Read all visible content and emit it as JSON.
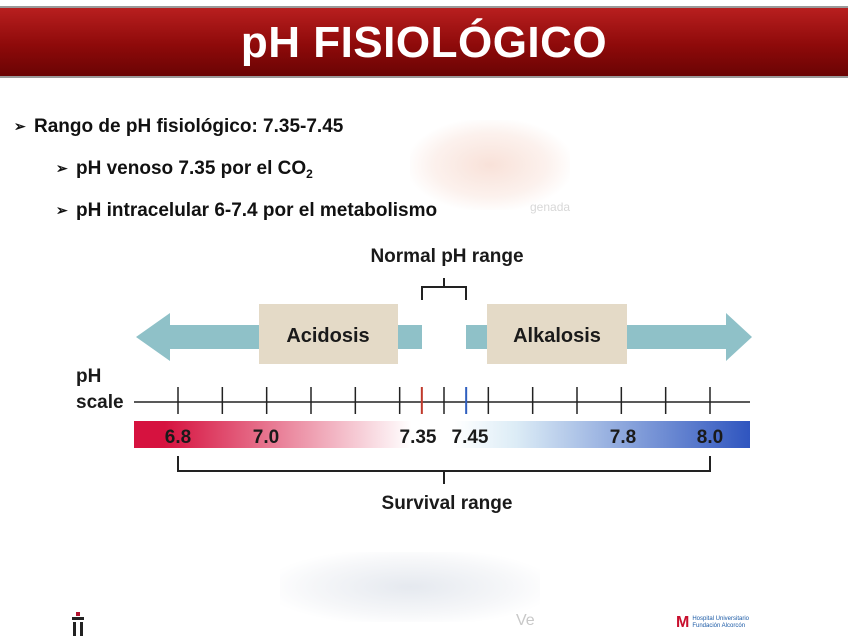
{
  "title": "pH FISIOLÓGICO",
  "bullets": {
    "main": "Rango de pH fisiológico: 7.35-7.45",
    "venous_text": "pH venoso 7.35 por el CO",
    "venous_sub": "2",
    "intracellular": "pH intracelular 6-7.4 por el metabolismo"
  },
  "background_text": {
    "top_faded_word": "genada",
    "bottom_faded_word": "Ve"
  },
  "diagram": {
    "normal_range_label": "Normal pH range",
    "acidosis_label": "Acidosis",
    "alkalosis_label": "Alkalosis",
    "scale_label_line1": "pH",
    "scale_label_line2": "scale",
    "survival_range_label": "Survival range",
    "tick_labels": [
      "6.8",
      "7.0",
      "7.35",
      "7.45",
      "7.8",
      "8.0"
    ],
    "colors": {
      "arrow": "#8fc1c8",
      "box": "#e4dac7",
      "acid": "#d6123f",
      "neutral": "#ffffff",
      "alkaline": "#2f55bf",
      "tick_735": "#c0392b",
      "tick_745": "#2f5fbf"
    }
  },
  "logos": {
    "right_mark": "M",
    "right_text_line1": "Hospital Universitario",
    "right_text_line2": "Fundación Alcorcón"
  }
}
